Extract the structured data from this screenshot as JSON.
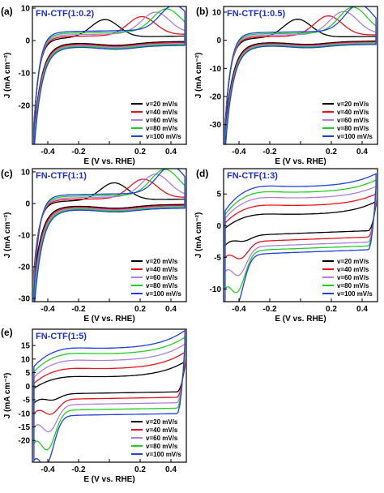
{
  "colors": [
    "#000000",
    "#e8141b",
    "#b07ee0",
    "#20d020",
    "#1f3fe0"
  ],
  "title_color": "#1f30c8",
  "chart_data": [
    {
      "type": "line",
      "panel_label": "(a)",
      "title": "FN-CTF(1:0.2)",
      "xlabel": "E (V vs. RHE)",
      "ylabel": "J (mA cm⁻²)",
      "xlim": [
        -0.5,
        0.5
      ],
      "ylim": [
        -32,
        10.5
      ],
      "xticks": [
        "-0.4",
        "-0.2",
        "0.0",
        "0.2",
        "0.4"
      ],
      "yticks": [
        "10",
        "0",
        "-10",
        "-20"
      ],
      "legend": [
        "v=20 mV/s",
        "v=40 mV/s",
        "v=60 mV/s",
        "v=80 mV/s",
        "v=100 mV/s"
      ],
      "legend_position": "bottom-right",
      "cv": {
        "peak_E": [
          -0.03,
          0.21,
          0.3,
          0.37,
          0.42
        ],
        "peak_height": [
          5.5,
          5.7,
          6.5,
          7.0,
          7.6
        ],
        "upper_base": [
          1.0,
          1.5,
          2.0,
          2.5,
          3.0
        ],
        "lower_base": [
          -0.6,
          -0.9,
          -1.2,
          -1.5,
          -1.8
        ],
        "start_J": [
          -26,
          -27,
          -28,
          -29,
          -30
        ],
        "edge_J": 5
      }
    },
    {
      "type": "line",
      "panel_label": "(b)",
      "title": "FN-CTF(1:0.5)",
      "xlabel": "E (V vs. RHE)",
      "ylabel": "J (mA cm⁻²)",
      "xlim": [
        -0.5,
        0.5
      ],
      "ylim": [
        -37,
        12
      ],
      "xticks": [
        "-0.4",
        "-0.2",
        "0.0",
        "0.2",
        "0.4"
      ],
      "yticks": [
        "10",
        "0",
        "-10",
        "-20",
        "-30"
      ],
      "legend": [
        "v=20 mV/s",
        "v=40 mV/s",
        "v=60 mV/s",
        "v=80 mV/s",
        "v=100 mV/s"
      ],
      "legend_position": "bottom-right",
      "cv": {
        "peak_E": [
          -0.02,
          0.18,
          0.28,
          0.34,
          0.38
        ],
        "peak_height": [
          6.5,
          7.0,
          8.0,
          9.0,
          9.5
        ],
        "upper_base": [
          1.0,
          1.5,
          2.0,
          2.5,
          3.0
        ],
        "lower_base": [
          -0.6,
          -0.9,
          -1.2,
          -1.5,
          -1.8
        ],
        "start_J": [
          -30,
          -32,
          -33,
          -34,
          -35
        ],
        "edge_J": 5
      }
    },
    {
      "type": "line",
      "panel_label": "(c)",
      "title": "FN-CTF(1:1)",
      "xlabel": "E (V vs. RHE)",
      "ylabel": "J (mA cm⁻²)",
      "xlim": [
        -0.5,
        0.5
      ],
      "ylim": [
        -31,
        11
      ],
      "xticks": [
        "-0.4",
        "-0.2",
        "0.0",
        "0.2",
        "0.4"
      ],
      "yticks": [
        "10",
        "0",
        "-10",
        "-20",
        "-30"
      ],
      "legend": [
        "v=20 mV/s",
        "v=40 mV/s",
        "v=60 mV/s",
        "v=80 mV/s",
        "v=100 mV/s"
      ],
      "legend_position": "bottom-right",
      "cv": {
        "peak_E": [
          0.03,
          0.22,
          0.3,
          0.36,
          0.4
        ],
        "peak_height": [
          5.5,
          6.0,
          7.0,
          8.0,
          8.5
        ],
        "upper_base": [
          1.0,
          1.5,
          2.0,
          2.5,
          3.0
        ],
        "lower_base": [
          -0.6,
          -0.9,
          -1.2,
          -1.5,
          -1.8
        ],
        "start_J": [
          -22,
          -24,
          -26,
          -28,
          -30
        ],
        "edge_J": 5
      }
    },
    {
      "type": "line",
      "panel_label": "(d)",
      "title": "FN-CTF(1:3)",
      "xlabel": "E (V vs. RHE)",
      "ylabel": "J (mA cm⁻²)",
      "xlim": [
        -0.5,
        0.5
      ],
      "ylim": [
        -12,
        9
      ],
      "xticks": [
        "-0.4",
        "-0.2",
        "0.0",
        "0.2",
        "0.4"
      ],
      "yticks": [
        "5",
        "0",
        "-5",
        "-10"
      ],
      "legend": [
        "v=20 mV/s",
        "v=40 mV/s",
        "v=60 mV/s",
        "v=80 mV/s",
        "v=100 mV/s"
      ],
      "legend_position": "bottom-right",
      "cv": {
        "upper_mid": [
          1.8,
          3.2,
          4.4,
          5.3,
          6.2
        ],
        "upper_end": [
          3.8,
          5.0,
          6.2,
          7.2,
          8.2
        ],
        "upper_start": [
          -0.5,
          0.3,
          1.0,
          1.6,
          2.2
        ],
        "lower_mid": [
          -1.2,
          -2.2,
          -3.0,
          -3.6,
          -4.2
        ],
        "lower_start": [
          -3.0,
          -4.8,
          -6.8,
          -9.0,
          -11.0
        ],
        "dip": [
          -2.0,
          -4.6,
          -7.0,
          -9.3,
          -11.3
        ],
        "dip_E": [
          -0.37,
          -0.39,
          -0.4,
          -0.41,
          -0.42
        ]
      }
    },
    {
      "type": "line",
      "panel_label": "(e)",
      "title": "FN-CTF(1:5)",
      "xlabel": "E (V vs. RHE)",
      "ylabel": "J (mA cm⁻²)",
      "xlim": [
        -0.5,
        0.5
      ],
      "ylim": [
        -28,
        21
      ],
      "xticks": [
        "-0.4",
        "-0.2",
        "0.0",
        "0.2",
        "0.4"
      ],
      "yticks": [
        "15",
        "10",
        "5",
        "0",
        "-5",
        "-10",
        "-15",
        "-20"
      ],
      "legend": [
        "v=20 mV/s",
        "v=40 mV/s",
        "v=60 mV/s",
        "v=80 mV/s",
        "v=100 mV/s"
      ],
      "legend_position": "bottom-right",
      "cv": {
        "upper_mid": [
          3.5,
          6.5,
          9.5,
          12.0,
          14.0
        ],
        "upper_end": [
          9.0,
          12.5,
          15.5,
          18.0,
          20.5
        ],
        "upper_start": [
          -1.0,
          0.8,
          3.0,
          5.0,
          7.0
        ],
        "lower_mid": [
          -2.5,
          -4.5,
          -6.5,
          -8.5,
          -10.5
        ],
        "lower_start": [
          -6.5,
          -10.5,
          -15.5,
          -20.5,
          -25.5
        ],
        "dip": [
          -4.5,
          -9.5,
          -15.5,
          -21.5,
          -26.5
        ],
        "dip_E": [
          -0.37,
          -0.38,
          -0.39,
          -0.4,
          -0.41
        ]
      }
    }
  ]
}
